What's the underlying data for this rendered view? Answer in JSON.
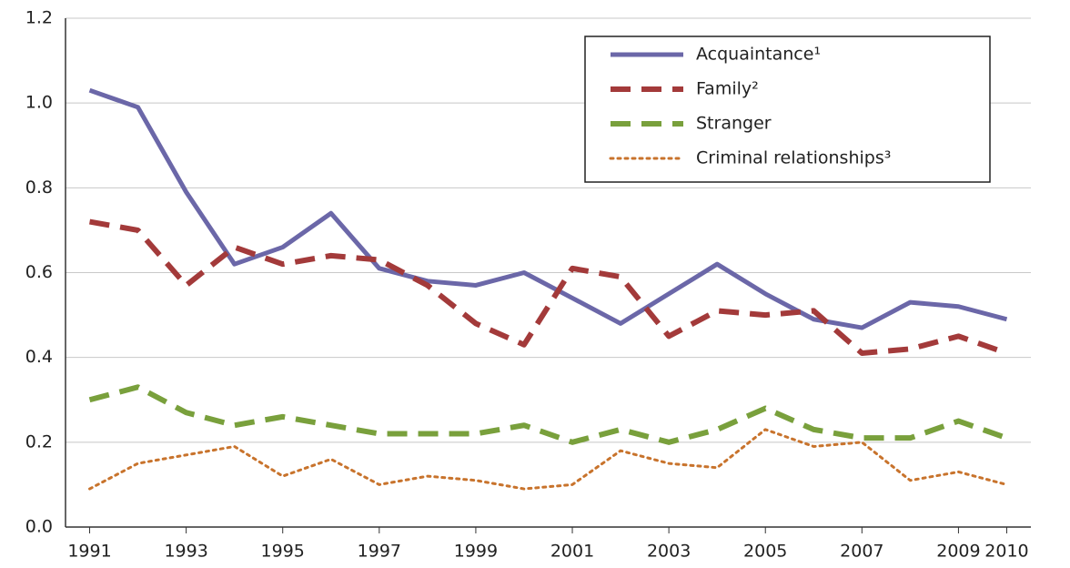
{
  "chart_data": {
    "type": "line",
    "x": [
      1991,
      1992,
      1993,
      1994,
      1995,
      1996,
      1997,
      1998,
      1999,
      2000,
      2001,
      2002,
      2003,
      2004,
      2005,
      2006,
      2007,
      2008,
      2009,
      2010
    ],
    "series": [
      {
        "name": "Acquaintance¹",
        "color": "#6b67a8",
        "dash": "solid",
        "values": [
          1.03,
          0.99,
          0.79,
          0.62,
          0.66,
          0.74,
          0.61,
          0.58,
          0.57,
          0.6,
          0.54,
          0.48,
          0.55,
          0.62,
          0.55,
          0.49,
          0.47,
          0.53,
          0.52,
          0.49
        ]
      },
      {
        "name": "Family²",
        "color": "#a33a3a",
        "dash": "dashed",
        "values": [
          0.72,
          0.7,
          0.57,
          0.66,
          0.62,
          0.64,
          0.63,
          0.57,
          0.48,
          0.43,
          0.61,
          0.59,
          0.45,
          0.51,
          0.5,
          0.51,
          0.41,
          0.42,
          0.45,
          0.41
        ]
      },
      {
        "name": "Stranger",
        "color": "#79a03c",
        "dash": "dashed",
        "values": [
          0.3,
          0.33,
          0.27,
          0.24,
          0.26,
          0.24,
          0.22,
          0.22,
          0.22,
          0.24,
          0.2,
          0.23,
          0.2,
          0.23,
          0.28,
          0.23,
          0.21,
          0.21,
          0.25,
          0.21
        ]
      },
      {
        "name": "Criminal relationships³",
        "color": "#c8732c",
        "dash": "dotted",
        "values": [
          0.09,
          0.15,
          0.17,
          0.19,
          0.12,
          0.16,
          0.1,
          0.12,
          0.11,
          0.09,
          0.1,
          0.18,
          0.15,
          0.14,
          0.23,
          0.19,
          0.2,
          0.11,
          0.13,
          0.1
        ]
      }
    ],
    "xlim": [
      1990.5,
      2010.5
    ],
    "xticks": [
      1991,
      1993,
      1995,
      1997,
      1999,
      2001,
      2003,
      2005,
      2007,
      2009,
      2010
    ],
    "ylim": [
      0,
      1.2
    ],
    "yticks": [
      {
        "value": 0,
        "label": "0.0"
      },
      0.2,
      0.4,
      0.6,
      0.8,
      {
        "value": 1,
        "label": "1.0"
      },
      1.2
    ],
    "grid": true,
    "legend": "top-right"
  }
}
